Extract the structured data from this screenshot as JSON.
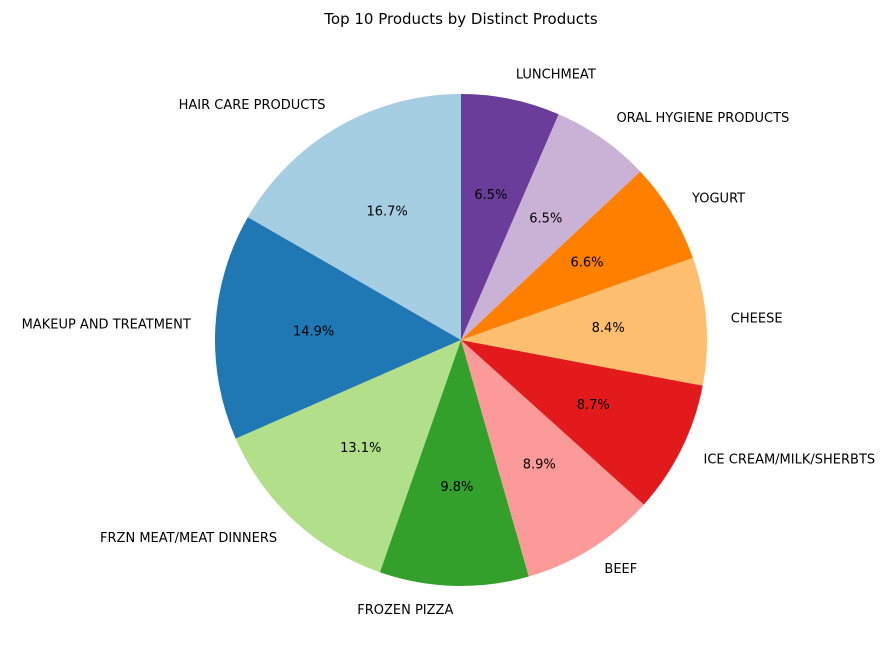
{
  "chart_data": {
    "type": "pie",
    "title": "Top 10 Products by Distinct Products",
    "start_angle_deg": 90,
    "direction": "counterclockwise",
    "slices": [
      {
        "label": "HAIR CARE PRODUCTS",
        "value": 16.7,
        "pct_label": "16.7%",
        "color": "#a6cee3"
      },
      {
        "label": "MAKEUP AND TREATMENT",
        "value": 14.9,
        "pct_label": "14.9%",
        "color": "#1f78b4"
      },
      {
        "label": "FRZN MEAT/MEAT DINNERS",
        "value": 13.1,
        "pct_label": "13.1%",
        "color": "#b2df8a"
      },
      {
        "label": "FROZEN PIZZA",
        "value": 9.8,
        "pct_label": "9.8%",
        "color": "#33a02c"
      },
      {
        "label": "BEEF",
        "value": 8.9,
        "pct_label": "8.9%",
        "color": "#fb9a99"
      },
      {
        "label": "ICE CREAM/MILK/SHERBTS",
        "value": 8.7,
        "pct_label": "8.7%",
        "color": "#e31a1c"
      },
      {
        "label": "CHEESE",
        "value": 8.4,
        "pct_label": "8.4%",
        "color": "#fdbf6f"
      },
      {
        "label": "YOGURT",
        "value": 6.6,
        "pct_label": "6.6%",
        "color": "#ff7f00"
      },
      {
        "label": "ORAL HYGIENE PRODUCTS",
        "value": 6.5,
        "pct_label": "6.5%",
        "color": "#cab2d6"
      },
      {
        "label": "LUNCHMEAT",
        "value": 6.5,
        "pct_label": "6.5%",
        "color": "#6a3d9a"
      }
    ]
  }
}
